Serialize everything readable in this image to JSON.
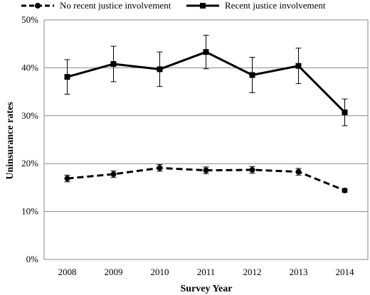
{
  "chart_data": {
    "type": "line",
    "xlabel": "Survey Year",
    "ylabel": "Uninsurance rates",
    "categories": [
      "2008",
      "2009",
      "2010",
      "2011",
      "2012",
      "2013",
      "2014"
    ],
    "ylim": [
      0,
      50
    ],
    "yticks": [
      "0%",
      "10%",
      "20%",
      "30%",
      "40%",
      "50%"
    ],
    "grid": "horizontal",
    "legend_position": "top",
    "series": [
      {
        "name": "No recent justice involvement",
        "line_style": "dashed",
        "marker": "circle",
        "color": "#000000",
        "values": [
          16.9,
          17.8,
          19.1,
          18.6,
          18.7,
          18.3,
          14.4
        ],
        "error_low": [
          16.2,
          17.1,
          18.4,
          17.9,
          18.0,
          17.6,
          14.0
        ],
        "error_high": [
          17.6,
          18.5,
          19.8,
          19.3,
          19.4,
          19.0,
          14.8
        ]
      },
      {
        "name": "Recent justice involvement",
        "line_style": "solid",
        "marker": "square",
        "color": "#000000",
        "values": [
          38.1,
          40.8,
          39.7,
          43.3,
          38.5,
          40.4,
          30.7
        ],
        "error_low": [
          34.5,
          37.1,
          36.1,
          39.8,
          34.8,
          36.7,
          27.9
        ],
        "error_high": [
          41.7,
          44.5,
          43.3,
          46.8,
          42.2,
          44.1,
          33.5
        ]
      }
    ]
  }
}
